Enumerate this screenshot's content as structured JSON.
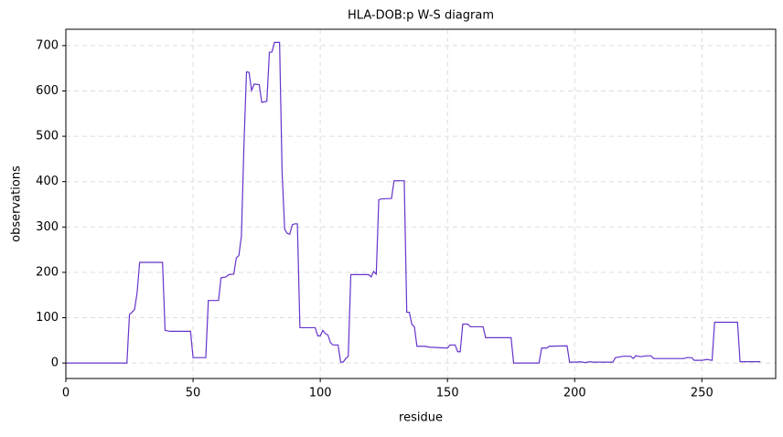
{
  "chart_data": {
    "type": "line",
    "title": "HLA-DOB:p W-S diagram",
    "x_label": "residue",
    "y_label": "observations",
    "xlim": [
      0,
      279
    ],
    "ylim": [
      -34,
      736
    ],
    "xticks": [
      0,
      50,
      100,
      150,
      200,
      250
    ],
    "yticks": [
      0,
      100,
      200,
      300,
      400,
      500,
      600,
      700
    ],
    "grid": true,
    "x": [
      0,
      24,
      25,
      26,
      27,
      28,
      29,
      38,
      39,
      41,
      49,
      50,
      55,
      56,
      60,
      61,
      63,
      64,
      66,
      67,
      68,
      69,
      70,
      71,
      72,
      73,
      74,
      76,
      77,
      79,
      80,
      81,
      82,
      84,
      85,
      86,
      87,
      88,
      89,
      90,
      91,
      92,
      98,
      99,
      100,
      101,
      102,
      103,
      104,
      105,
      107,
      108,
      109,
      110,
      111,
      112,
      119,
      120,
      121,
      122,
      123,
      124,
      128,
      129,
      133,
      134,
      135,
      136,
      137,
      138,
      141,
      143,
      150,
      151,
      153,
      154,
      155,
      156,
      158,
      159,
      164,
      165,
      175,
      176,
      186,
      187,
      189,
      190,
      197,
      198,
      201,
      202,
      204,
      206,
      207,
      215,
      216,
      218,
      219,
      222,
      223,
      224,
      226,
      228,
      230,
      231,
      236,
      243,
      244,
      246,
      247,
      250,
      252,
      254,
      255,
      264,
      265,
      273
    ],
    "series": [
      {
        "name": "observations",
        "color": "#6633cc",
        "values": [
          0,
          0,
          107,
          112,
          118,
          155,
          222,
          222,
          72,
          70,
          70,
          12,
          12,
          138,
          138,
          188,
          190,
          195,
          196,
          232,
          237,
          280,
          480,
          642,
          641,
          601,
          615,
          614,
          575,
          577,
          685,
          686,
          707,
          707,
          420,
          295,
          286,
          284,
          305,
          307,
          307,
          78,
          78,
          60,
          60,
          72,
          65,
          62,
          45,
          40,
          40,
          2,
          2,
          10,
          15,
          195,
          195,
          190,
          202,
          196,
          360,
          362,
          363,
          402,
          402,
          112,
          112,
          85,
          80,
          37,
          37,
          35,
          33,
          40,
          40,
          25,
          25,
          86,
          86,
          80,
          80,
          56,
          56,
          0,
          0,
          33,
          33,
          37,
          38,
          2,
          2,
          3,
          1,
          3,
          2,
          2,
          12,
          14,
          15,
          15,
          10,
          16,
          14,
          16,
          16,
          10,
          10,
          10,
          12,
          12,
          6,
          6,
          8,
          6,
          90,
          90,
          3,
          3
        ]
      }
    ]
  }
}
